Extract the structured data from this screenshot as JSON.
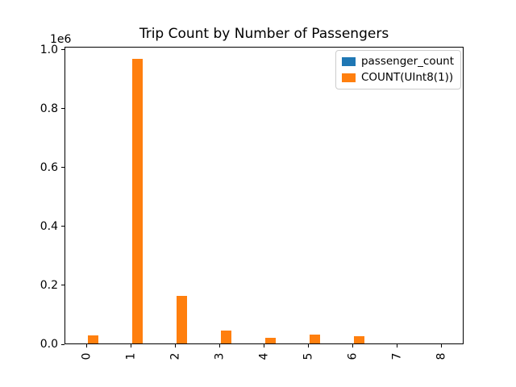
{
  "chart_data": {
    "type": "bar",
    "title": "Trip Count by Number of Passengers",
    "xlabel": "",
    "ylabel": "",
    "categories": [
      "0",
      "1",
      "2",
      "3",
      "4",
      "5",
      "6",
      "7",
      "8"
    ],
    "series": [
      {
        "name": "passenger_count",
        "color": "#1f77b4",
        "values": [
          0,
          1,
          2,
          3,
          4,
          5,
          6,
          7,
          8
        ]
      },
      {
        "name": "COUNT(UInt8(1))",
        "color": "#ff7f0e",
        "values": [
          27000,
          965000,
          161000,
          45000,
          19000,
          31000,
          25000,
          0,
          0
        ]
      }
    ],
    "ylim": [
      0,
      1010000
    ],
    "yticks": [
      {
        "label": "0.0",
        "value": 0
      },
      {
        "label": "0.2",
        "value": 200000
      },
      {
        "label": "0.4",
        "value": 400000
      },
      {
        "label": "0.6",
        "value": 600000
      },
      {
        "label": "0.8",
        "value": 800000
      },
      {
        "label": "1.0",
        "value": 1000000
      }
    ],
    "y_offset_text": "1e6",
    "xtick_rotation": 90,
    "grid": false,
    "legend_position": "upper right",
    "bar_group_fraction": 0.5
  }
}
